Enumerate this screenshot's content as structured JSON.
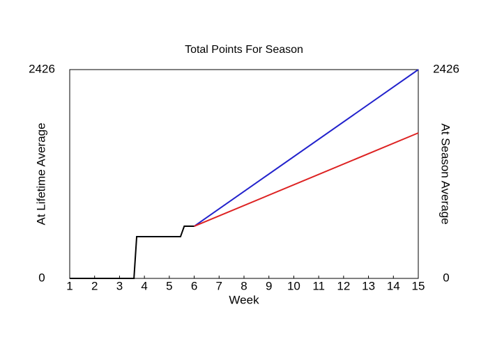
{
  "chart_data": {
    "type": "line",
    "title": "Total Points For Season",
    "xlabel": "Week",
    "ylabel": "At Lifetime Average",
    "y2label": "At Season Average",
    "xlim": [
      1,
      15
    ],
    "xticks": [
      1,
      2,
      3,
      4,
      5,
      6,
      7,
      8,
      9,
      10,
      11,
      12,
      13,
      14,
      15
    ],
    "ylim": [
      0,
      2426
    ],
    "yticks": [
      0,
      2426
    ],
    "y2lim": [
      0,
      2426
    ],
    "y2ticks": [
      0,
      2426
    ],
    "series": [
      {
        "color": "#000000",
        "x": [
          1,
          3.58,
          3.69,
          5.45,
          5.6,
          6
        ],
        "values": [
          0,
          0,
          485,
          485,
          606,
          606
        ]
      },
      {
        "name": "At Lifetime Average",
        "color": "#2222cc",
        "x": [
          6,
          15
        ],
        "values": [
          606,
          2426
        ]
      },
      {
        "name": "At Season Average",
        "color": "#dd2222",
        "axis": "y2",
        "x": [
          6,
          15
        ],
        "values": [
          606,
          1690
        ]
      }
    ]
  }
}
